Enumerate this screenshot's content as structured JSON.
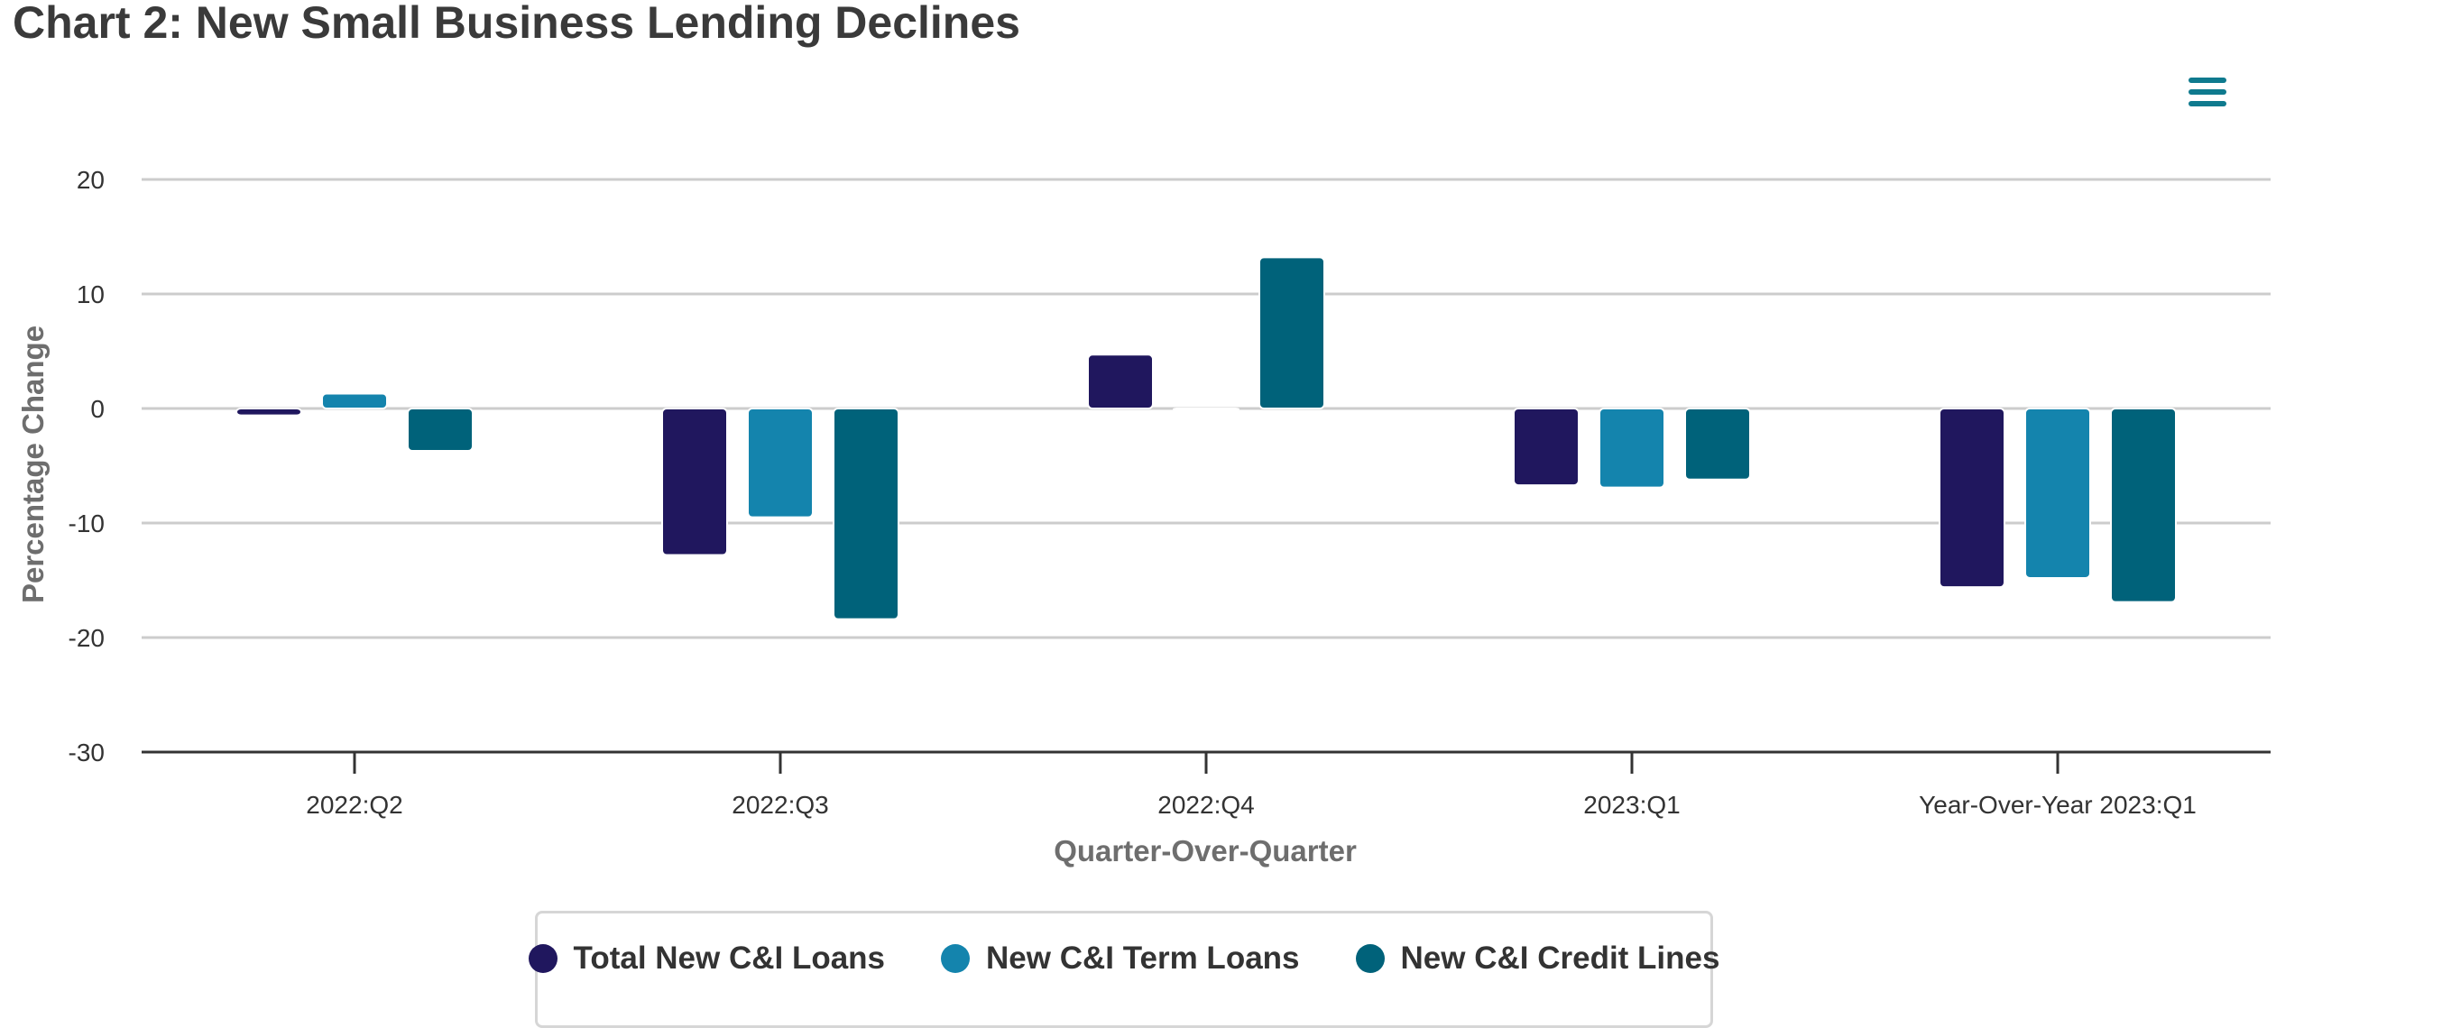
{
  "title": "Chart 2: New Small Business Lending Declines",
  "menu_icon": "hamburger-menu-icon",
  "colors": {
    "total": "#20175e",
    "term": "#1484ad",
    "credit": "#00627a",
    "grid": "#cccccc",
    "axis": "#333333"
  },
  "chart_data": {
    "type": "bar",
    "title": "Chart 2: New Small Business Lending Declines",
    "xlabel": "Quarter-Over-Quarter",
    "ylabel": "Percentage Change",
    "ylim": [
      -30,
      20
    ],
    "yticks": [
      20,
      10,
      0,
      -10,
      -20,
      -30
    ],
    "grid": true,
    "legend_position": "bottom",
    "categories": [
      "2022:Q2",
      "2022:Q3",
      "2022:Q4",
      "2023:Q1",
      "Year-Over-Year 2023:Q1"
    ],
    "series": [
      {
        "name": "Total New C&I Loans",
        "color": "#20175e",
        "values": [
          -0.6,
          -12.8,
          4.7,
          -6.7,
          -15.6
        ]
      },
      {
        "name": "New C&I Term Loans",
        "color": "#1484ad",
        "values": [
          1.3,
          -9.5,
          -0.1,
          -6.9,
          -14.8
        ]
      },
      {
        "name": "New C&I Credit Lines",
        "color": "#00627a",
        "values": [
          -3.7,
          -18.4,
          13.2,
          -6.2,
          -16.9
        ]
      }
    ]
  }
}
